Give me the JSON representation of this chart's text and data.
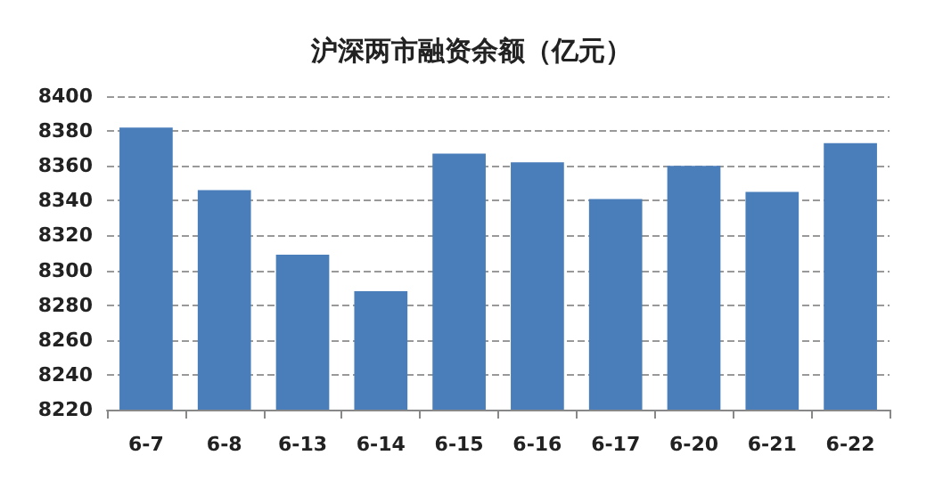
{
  "chart_data": {
    "type": "bar",
    "title": "沪深两市融资余额（亿元）",
    "categories": [
      "6-7",
      "6-8",
      "6-13",
      "6-14",
      "6-15",
      "6-16",
      "6-17",
      "6-20",
      "6-21",
      "6-22"
    ],
    "values": [
      8382,
      8346,
      8309,
      8288,
      8367,
      8362,
      8341,
      8360,
      8345,
      8373
    ],
    "color": "#4a7ebb",
    "ylim": [
      8220,
      8400
    ],
    "yticks": [
      8220,
      8240,
      8260,
      8280,
      8300,
      8320,
      8340,
      8360,
      8380,
      8400
    ],
    "grid": "y"
  }
}
